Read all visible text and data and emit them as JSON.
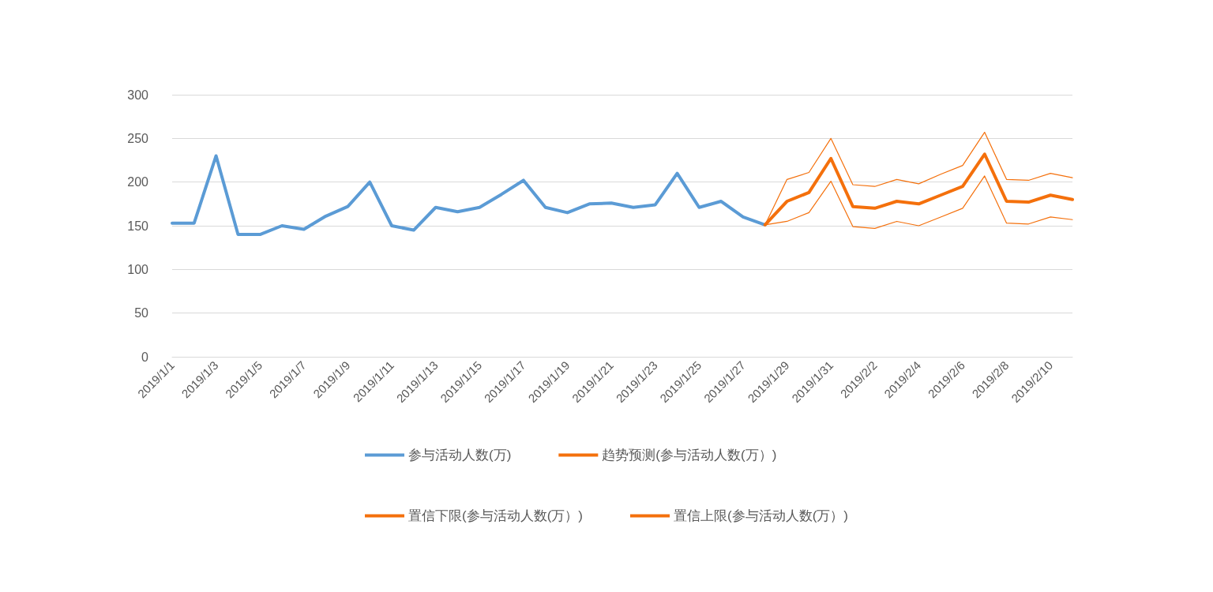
{
  "chart_data": {
    "type": "line",
    "categories": [
      "2019/1/1",
      null,
      "2019/1/3",
      null,
      "2019/1/5",
      null,
      "2019/1/7",
      null,
      "2019/1/9",
      null,
      "2019/1/11",
      null,
      "2019/1/13",
      null,
      "2019/1/15",
      null,
      "2019/1/17",
      null,
      "2019/1/19",
      null,
      "2019/1/21",
      null,
      "2019/1/23",
      null,
      "2019/1/25",
      null,
      "2019/1/27",
      null,
      "2019/1/29",
      null,
      "2019/1/31",
      null,
      "2019/2/2",
      null,
      "2019/2/4",
      null,
      "2019/2/6",
      null,
      "2019/2/8",
      null,
      "2019/2/10",
      null
    ],
    "series": [
      {
        "name": "参与活动人数(万)",
        "color": "#5b9bd5",
        "values": [
          153,
          153,
          230,
          140,
          140,
          150,
          146,
          161,
          172,
          200,
          150,
          145,
          171,
          166,
          171,
          186,
          202,
          171,
          165,
          175,
          176,
          171,
          174,
          210,
          171,
          178,
          160,
          151,
          null,
          null,
          null,
          null,
          null,
          null,
          null,
          null,
          null,
          null,
          null,
          null,
          null,
          null
        ]
      },
      {
        "name": "趋势预测(参与活动人数(万）)",
        "color": "#f4700c",
        "values": [
          null,
          null,
          null,
          null,
          null,
          null,
          null,
          null,
          null,
          null,
          null,
          null,
          null,
          null,
          null,
          null,
          null,
          null,
          null,
          null,
          null,
          null,
          null,
          null,
          null,
          null,
          null,
          151,
          178,
          188,
          227,
          172,
          170,
          178,
          175,
          185,
          195,
          232,
          178,
          177,
          185,
          180
        ]
      },
      {
        "name": "置信下限(参与活动人数(万）)",
        "color": "#f4700c",
        "values": [
          null,
          null,
          null,
          null,
          null,
          null,
          null,
          null,
          null,
          null,
          null,
          null,
          null,
          null,
          null,
          null,
          null,
          null,
          null,
          null,
          null,
          null,
          null,
          null,
          null,
          null,
          null,
          151,
          155,
          165,
          201,
          149,
          147,
          155,
          150,
          160,
          170,
          207,
          153,
          152,
          160,
          157
        ]
      },
      {
        "name": "置信上限(参与活动人数(万）)",
        "color": "#f4700c",
        "values": [
          null,
          null,
          null,
          null,
          null,
          null,
          null,
          null,
          null,
          null,
          null,
          null,
          null,
          null,
          null,
          null,
          null,
          null,
          null,
          null,
          null,
          null,
          null,
          null,
          null,
          null,
          null,
          151,
          203,
          211,
          250,
          197,
          195,
          203,
          198,
          209,
          219,
          257,
          203,
          202,
          210,
          205
        ]
      }
    ],
    "ylim": [
      0,
      300
    ],
    "yticks": [
      0,
      50,
      100,
      150,
      200,
      250,
      300
    ],
    "grid": "y",
    "legend": "bottom",
    "marker": "none",
    "line_style": "solid"
  }
}
